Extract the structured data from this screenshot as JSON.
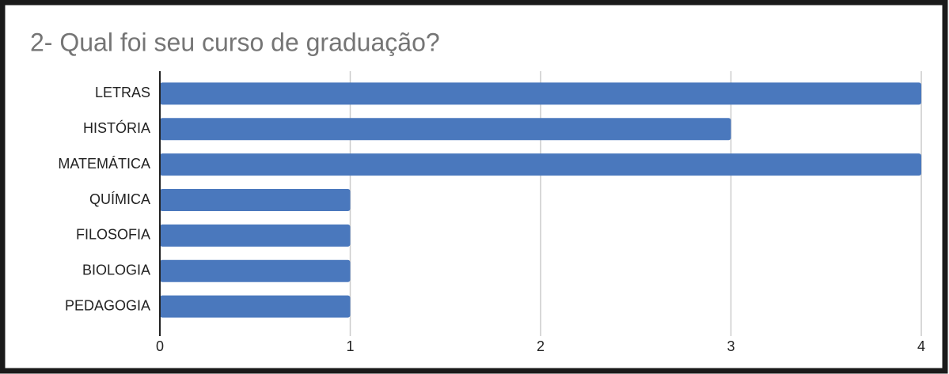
{
  "chart_data": {
    "type": "bar",
    "orientation": "horizontal",
    "title": "2- Qual foi seu curso de graduação?",
    "categories": [
      "LETRAS",
      "HISTÓRIA",
      "MATEMÁTICA",
      "QUÍMICA",
      "FILOSOFIA",
      "BIOLOGIA",
      "PEDAGOGIA"
    ],
    "values": [
      4,
      3,
      4,
      1,
      1,
      1,
      1
    ],
    "color": "#4a78bd",
    "xlim": [
      0,
      4
    ],
    "xticks": [
      0,
      1,
      2,
      3,
      4
    ],
    "grid": true
  }
}
